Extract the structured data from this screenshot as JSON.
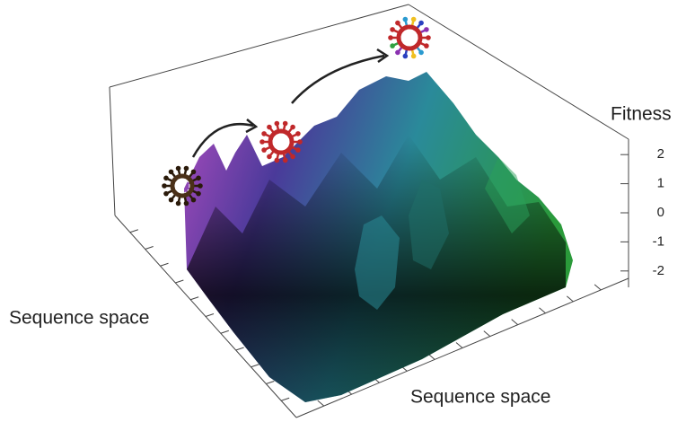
{
  "chart_data": {
    "type": "surface3d",
    "z_label": "Fitness",
    "x_label": "Sequence space",
    "y_label": "Sequence space",
    "zlim": [
      -2.5,
      2.5
    ],
    "zticks": [
      2,
      1,
      0,
      -1,
      -2
    ]
  }
}
